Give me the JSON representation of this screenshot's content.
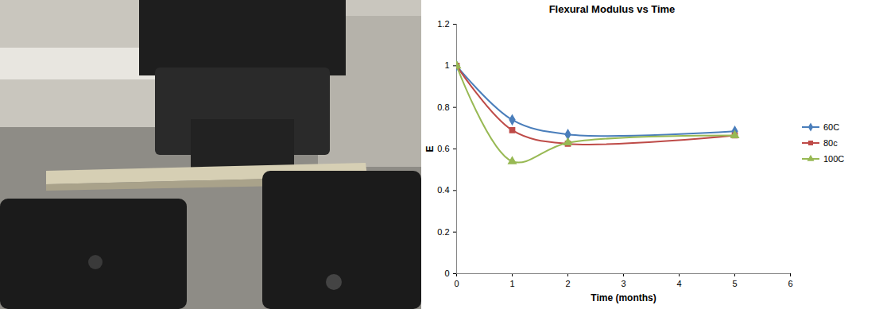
{
  "chart_data": {
    "type": "line",
    "title": "Flexural Modulus vs Time",
    "x_label": "Time (months)",
    "y_label": "E",
    "x": [
      0,
      1,
      2,
      5
    ],
    "series": [
      {
        "name": "60C",
        "color": "#4a7ebb",
        "marker": "diamond",
        "line_style": "solid",
        "values": [
          1,
          0.74,
          0.67,
          0.685
        ]
      },
      {
        "name": "80c",
        "color": "#be4b48",
        "marker": "square",
        "line_style": "solid",
        "values": [
          1,
          0.69,
          0.625,
          0.665
        ]
      },
      {
        "name": "100C",
        "color": "#98b954",
        "marker": "triangle",
        "line_style": "solid",
        "values": [
          1,
          0.54,
          0.63,
          0.665
        ]
      }
    ],
    "xlim": [
      0,
      6
    ],
    "xticks": [
      0,
      1,
      2,
      3,
      4,
      5,
      6
    ],
    "ylim": [
      0,
      1.2
    ],
    "yticks": [
      0,
      0.2,
      0.4,
      0.6,
      0.8,
      1,
      1.2
    ],
    "grid": false,
    "legend": "right"
  }
}
